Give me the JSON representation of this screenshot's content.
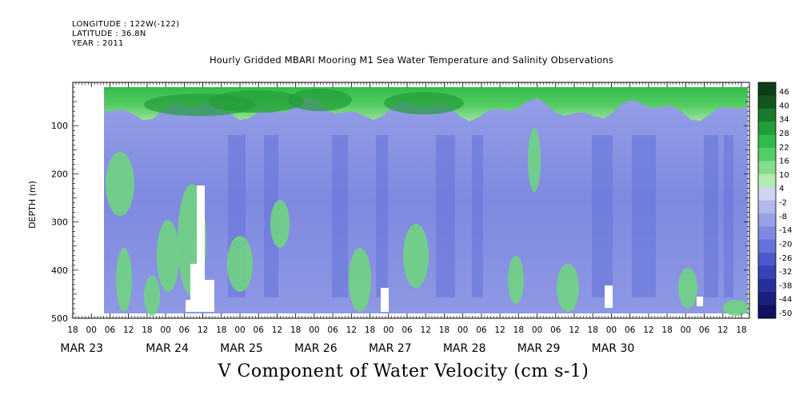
{
  "header": {
    "longitude": "LONGITUDE : 122W(-122)",
    "latitude": "LATITUDE : 36.8N",
    "year": "YEAR : 2011"
  },
  "chart_data": {
    "type": "heatmap",
    "title": "Hourly Gridded MBARI Mooring M1 Sea Water Temperature and Salinity Observations",
    "xlabel": "",
    "ylabel": "DEPTH (m)",
    "variable_label": "V Component of Water Velocity (cm s-1)",
    "x_hour_ticks": [
      "18",
      "00",
      "06",
      "12",
      "18",
      "00",
      "06",
      "12",
      "18",
      "00",
      "06",
      "12",
      "18",
      "00",
      "06",
      "12",
      "18",
      "00",
      "06",
      "12",
      "18",
      "00",
      "06",
      "12",
      "18",
      "00",
      "06",
      "12",
      "18",
      "00",
      "06",
      "12",
      "18",
      "00",
      "06",
      "12",
      "18"
    ],
    "x_date_labels": [
      "MAR 23",
      "MAR 24",
      "MAR 25",
      "MAR 26",
      "MAR 27",
      "MAR 28",
      "MAR 29",
      "MAR 30"
    ],
    "y_ticks": [
      "100",
      "200",
      "300",
      "400",
      "500"
    ],
    "ylim": [
      500,
      10
    ],
    "y_reversed": true,
    "colorbar_labels": [
      "46",
      "40",
      "34",
      "28",
      "22",
      "16",
      "10",
      "4",
      "-2",
      "-8",
      "-14",
      "-20",
      "-26",
      "-32",
      "-38",
      "-44",
      "-50"
    ],
    "colorbar_range": [
      -50,
      52
    ],
    "colorbar_colors": [
      "#0c3d14",
      "#11561e",
      "#197a2a",
      "#229d38",
      "#31bb4a",
      "#56cd64",
      "#85dc8a",
      "#b3ebb2",
      "#d0d3f2",
      "#b1b8ec",
      "#97a0e6",
      "#7e89e0",
      "#6572d8",
      "#4c59cc",
      "#3742b8",
      "#27309a",
      "#1a1f7c",
      "#0e1260"
    ],
    "depth_range_data": [
      20,
      490
    ],
    "time_start": "MAR 23 02:00",
    "time_end": "MAR 30 20:00",
    "field_description_values": {
      "surface_layer_mean": 18,
      "surface_layer_bottom_depth": 80,
      "subsurface_mean": -14
    }
  }
}
